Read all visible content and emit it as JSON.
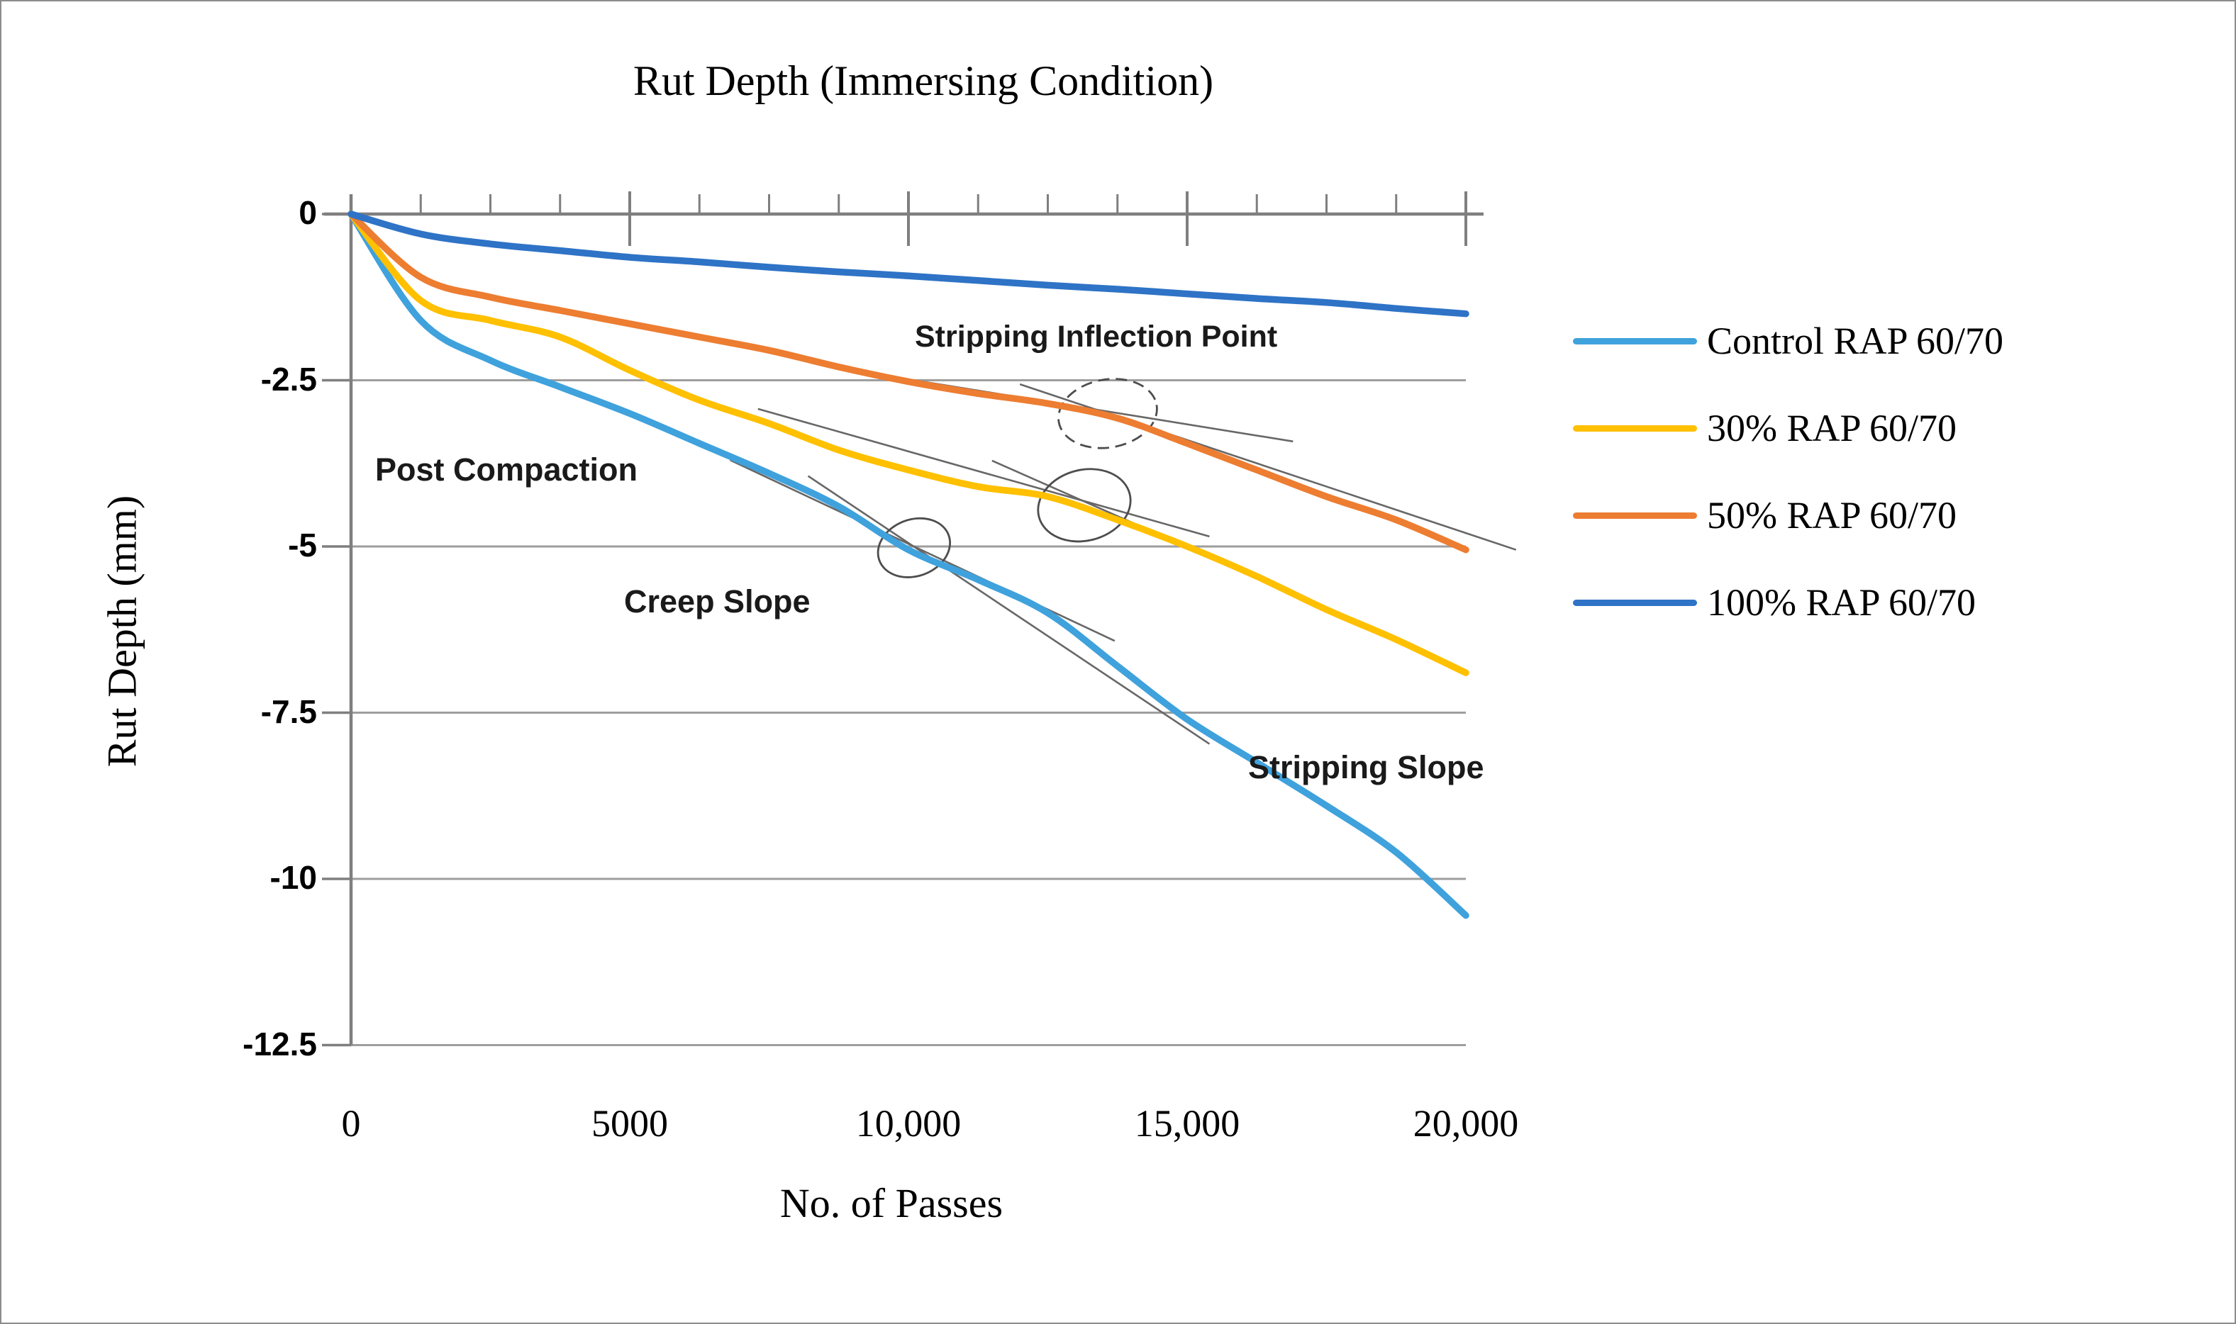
{
  "title": "Rut Depth (Immersing Condition)",
  "chart_data": {
    "type": "line",
    "title": "Rut Depth (Immersing Condition)",
    "xlabel": "No. of Passes",
    "ylabel": "Rut Depth (mm)",
    "xlim": [
      0,
      20000
    ],
    "ylim": [
      -12.5,
      0
    ],
    "grid": "horizontal",
    "legend_position": "right",
    "x_ticks": {
      "values": [
        0,
        5000,
        10000,
        15000,
        20000
      ],
      "labels": [
        "0",
        "5000",
        "10,000",
        "15,000",
        "20,000"
      ],
      "minor_step": 1250
    },
    "y_ticks": {
      "values": [
        0,
        -2.5,
        -5,
        -7.5,
        -10,
        -12.5
      ],
      "labels": [
        "0",
        "-2.5",
        "-5",
        "-7.5",
        "-10",
        "-12.5"
      ]
    },
    "x": [
      0,
      1250,
      2500,
      3750,
      5000,
      6250,
      7500,
      8750,
      10000,
      11250,
      12500,
      13750,
      15000,
      16250,
      17500,
      18750,
      20000
    ],
    "series": [
      {
        "name": "Control RAP 60/70",
        "color": "#3FA2DC",
        "values": [
          0,
          -1.6,
          -2.2,
          -2.6,
          -3.0,
          -3.45,
          -3.9,
          -4.4,
          -5.05,
          -5.5,
          -6.0,
          -6.8,
          -7.6,
          -8.25,
          -8.9,
          -9.6,
          -10.55
        ]
      },
      {
        "name": "30% RAP 60/70",
        "color": "#FFC000",
        "values": [
          0,
          -1.3,
          -1.6,
          -1.85,
          -2.35,
          -2.8,
          -3.15,
          -3.55,
          -3.85,
          -4.1,
          -4.25,
          -4.6,
          -5.0,
          -5.45,
          -5.95,
          -6.4,
          -6.9
        ]
      },
      {
        "name": "50% RAP 60/70",
        "color": "#ED7D31",
        "values": [
          0,
          -0.95,
          -1.25,
          -1.45,
          -1.65,
          -1.85,
          -2.05,
          -2.3,
          -2.52,
          -2.7,
          -2.85,
          -3.07,
          -3.45,
          -3.85,
          -4.25,
          -4.6,
          -5.05
        ]
      },
      {
        "name": "100% RAP 60/70",
        "color": "#2E73C6",
        "values": [
          0,
          -0.3,
          -0.45,
          -0.55,
          -0.65,
          -0.72,
          -0.8,
          -0.87,
          -0.93,
          -1.0,
          -1.07,
          -1.13,
          -1.2,
          -1.27,
          -1.33,
          -1.42,
          -1.5
        ]
      }
    ],
    "annotations": {
      "post_compaction": "Post Compaction",
      "creep_slope": "Creep Slope",
      "stripping_inflection_point": "Stripping Inflection Point",
      "stripping_slope": "Stripping Slope",
      "circles": [
        {
          "marks": "control inflection",
          "x": 10100,
          "y": -5.02,
          "rx": 52,
          "ry": 40,
          "rot": -20,
          "dashed": false
        },
        {
          "marks": "30% inflection",
          "x": 13155,
          "y": -4.38,
          "rx": 66,
          "ry": 50,
          "rot": -14,
          "dashed": false
        },
        {
          "marks": "50% inflection",
          "x": 13575,
          "y": -3.0,
          "rx": 70,
          "ry": 48,
          "rot": -10,
          "dashed": true
        }
      ],
      "tangent_lines": [
        {
          "of": "control creep tangent",
          "x1": 6800,
          "y1": -3.7,
          "x2": 13700,
          "y2": -6.42
        },
        {
          "of": "control stripping tangent",
          "x1": 8200,
          "y1": -3.94,
          "x2": 15400,
          "y2": -7.97
        },
        {
          "of": "30% creep tangent",
          "x1": 7300,
          "y1": -2.93,
          "x2": 15400,
          "y2": -4.85
        },
        {
          "of": "30% stripping tangent",
          "x1": 11500,
          "y1": -3.71,
          "x2": 18600,
          "y2": -6.34
        },
        {
          "of": "50% creep tangent",
          "x1": 8700,
          "y1": -2.31,
          "x2": 16900,
          "y2": -3.42
        },
        {
          "of": "50% stripping tangent",
          "x1": 12000,
          "y1": -2.56,
          "x2": 20900,
          "y2": -5.05
        }
      ]
    }
  }
}
